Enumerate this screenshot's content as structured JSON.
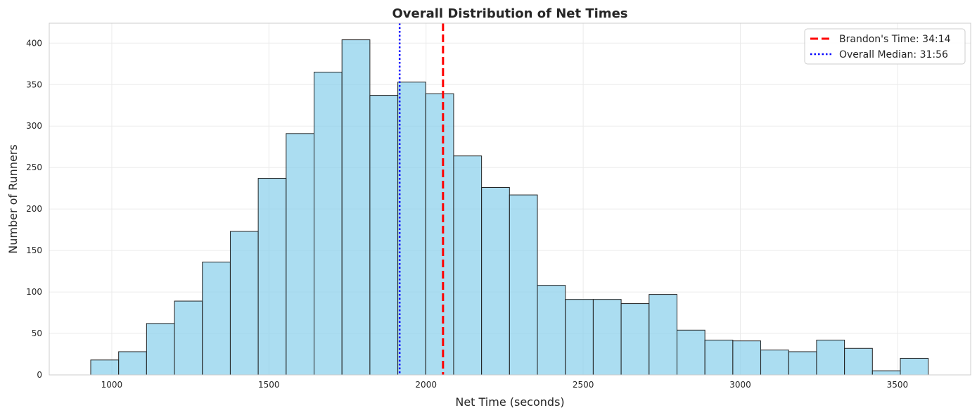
{
  "chart_data": {
    "type": "bar",
    "title": "Overall Distribution of Net Times",
    "xlabel": "Net Time (seconds)",
    "ylabel": "Number of Runners",
    "xlim": [
      801,
      3733
    ],
    "ylim": [
      0,
      424
    ],
    "grid": true,
    "legend_position": "top-right",
    "xticks": [
      1000,
      1500,
      2000,
      2500,
      3000,
      3500
    ],
    "yticks": [
      0,
      50,
      100,
      150,
      200,
      250,
      300,
      350,
      400
    ],
    "bin_start": 933,
    "bin_end": 3598,
    "values": [
      18,
      28,
      62,
      89,
      136,
      173,
      237,
      291,
      365,
      404,
      337,
      353,
      339,
      264,
      226,
      217,
      108,
      91,
      91,
      86,
      97,
      54,
      42,
      41,
      30,
      28,
      42,
      32,
      5,
      20
    ],
    "bar_color": "#87CEEB",
    "lines": [
      {
        "name": "Brandon's Time: 34:14",
        "x": 2054,
        "color": "#ff0000",
        "style": "dashed"
      },
      {
        "name": "Overall Median: 31:56",
        "x": 1916,
        "color": "#0000ff",
        "style": "dotted"
      }
    ]
  }
}
